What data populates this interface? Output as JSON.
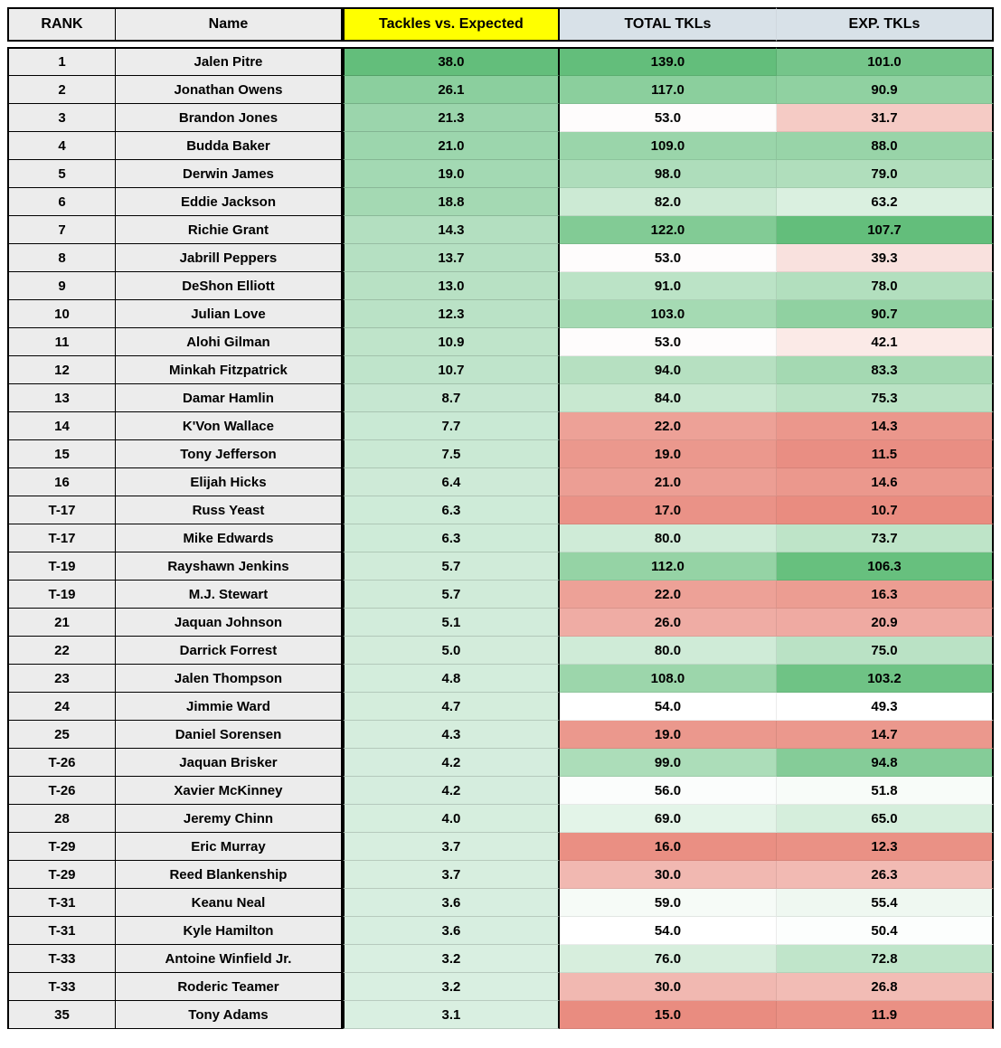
{
  "columns": {
    "rank": "RANK",
    "name": "Name",
    "tve": "Tackles vs. Expected",
    "total": "TOTAL TKLs",
    "exp": "EXP. TKLs"
  },
  "header_bg": {
    "default": "#ececec",
    "highlight": "#ffff00",
    "metric": "#d8e1e8"
  },
  "heatmap": {
    "green_strong": "#63be7b",
    "green_mid": "#a8d9b5",
    "green_light": "#d9efe1",
    "neutral": "#ffffff",
    "red_light": "#fbe4e1",
    "red_mid": "#f4b6ae",
    "red_strong": "#e98c80",
    "tve": {
      "min": 3.1,
      "max": 38.0
    },
    "total": {
      "min": 15.0,
      "max": 139.0,
      "neutral": 54.0
    },
    "exp": {
      "min": 10.7,
      "max": 107.7,
      "neutral": 49.3
    }
  },
  "font": {
    "family": "Arial",
    "size_pt": 12,
    "weight": "bold"
  },
  "rows": [
    {
      "rank": "1",
      "name": "Jalen Pitre",
      "tve": 38.0,
      "total": 139.0,
      "exp": 101.0
    },
    {
      "rank": "2",
      "name": "Jonathan Owens",
      "tve": 26.1,
      "total": 117.0,
      "exp": 90.9
    },
    {
      "rank": "3",
      "name": "Brandon Jones",
      "tve": 21.3,
      "total": 53.0,
      "exp": 31.7
    },
    {
      "rank": "4",
      "name": "Budda Baker",
      "tve": 21.0,
      "total": 109.0,
      "exp": 88.0
    },
    {
      "rank": "5",
      "name": "Derwin James",
      "tve": 19.0,
      "total": 98.0,
      "exp": 79.0
    },
    {
      "rank": "6",
      "name": "Eddie Jackson",
      "tve": 18.8,
      "total": 82.0,
      "exp": 63.2
    },
    {
      "rank": "7",
      "name": "Richie Grant",
      "tve": 14.3,
      "total": 122.0,
      "exp": 107.7
    },
    {
      "rank": "8",
      "name": "Jabrill Peppers",
      "tve": 13.7,
      "total": 53.0,
      "exp": 39.3
    },
    {
      "rank": "9",
      "name": "DeShon Elliott",
      "tve": 13.0,
      "total": 91.0,
      "exp": 78.0
    },
    {
      "rank": "10",
      "name": "Julian Love",
      "tve": 12.3,
      "total": 103.0,
      "exp": 90.7
    },
    {
      "rank": "11",
      "name": "Alohi Gilman",
      "tve": 10.9,
      "total": 53.0,
      "exp": 42.1
    },
    {
      "rank": "12",
      "name": "Minkah Fitzpatrick",
      "tve": 10.7,
      "total": 94.0,
      "exp": 83.3
    },
    {
      "rank": "13",
      "name": "Damar Hamlin",
      "tve": 8.7,
      "total": 84.0,
      "exp": 75.3
    },
    {
      "rank": "14",
      "name": "K'Von Wallace",
      "tve": 7.7,
      "total": 22.0,
      "exp": 14.3
    },
    {
      "rank": "15",
      "name": "Tony Jefferson",
      "tve": 7.5,
      "total": 19.0,
      "exp": 11.5
    },
    {
      "rank": "16",
      "name": "Elijah Hicks",
      "tve": 6.4,
      "total": 21.0,
      "exp": 14.6
    },
    {
      "rank": "T-17",
      "name": "Russ Yeast",
      "tve": 6.3,
      "total": 17.0,
      "exp": 10.7
    },
    {
      "rank": "T-17",
      "name": "Mike Edwards",
      "tve": 6.3,
      "total": 80.0,
      "exp": 73.7
    },
    {
      "rank": "T-19",
      "name": "Rayshawn Jenkins",
      "tve": 5.7,
      "total": 112.0,
      "exp": 106.3
    },
    {
      "rank": "T-19",
      "name": "M.J. Stewart",
      "tve": 5.7,
      "total": 22.0,
      "exp": 16.3
    },
    {
      "rank": "21",
      "name": "Jaquan Johnson",
      "tve": 5.1,
      "total": 26.0,
      "exp": 20.9
    },
    {
      "rank": "22",
      "name": "Darrick Forrest",
      "tve": 5.0,
      "total": 80.0,
      "exp": 75.0
    },
    {
      "rank": "23",
      "name": "Jalen Thompson",
      "tve": 4.8,
      "total": 108.0,
      "exp": 103.2
    },
    {
      "rank": "24",
      "name": "Jimmie Ward",
      "tve": 4.7,
      "total": 54.0,
      "exp": 49.3
    },
    {
      "rank": "25",
      "name": "Daniel Sorensen",
      "tve": 4.3,
      "total": 19.0,
      "exp": 14.7
    },
    {
      "rank": "T-26",
      "name": "Jaquan Brisker",
      "tve": 4.2,
      "total": 99.0,
      "exp": 94.8
    },
    {
      "rank": "T-26",
      "name": "Xavier McKinney",
      "tve": 4.2,
      "total": 56.0,
      "exp": 51.8
    },
    {
      "rank": "28",
      "name": "Jeremy Chinn",
      "tve": 4.0,
      "total": 69.0,
      "exp": 65.0
    },
    {
      "rank": "T-29",
      "name": "Eric Murray",
      "tve": 3.7,
      "total": 16.0,
      "exp": 12.3
    },
    {
      "rank": "T-29",
      "name": "Reed Blankenship",
      "tve": 3.7,
      "total": 30.0,
      "exp": 26.3
    },
    {
      "rank": "T-31",
      "name": "Keanu Neal",
      "tve": 3.6,
      "total": 59.0,
      "exp": 55.4
    },
    {
      "rank": "T-31",
      "name": "Kyle Hamilton",
      "tve": 3.6,
      "total": 54.0,
      "exp": 50.4
    },
    {
      "rank": "T-33",
      "name": "Antoine Winfield Jr.",
      "tve": 3.2,
      "total": 76.0,
      "exp": 72.8
    },
    {
      "rank": "T-33",
      "name": "Roderic Teamer",
      "tve": 3.2,
      "total": 30.0,
      "exp": 26.8
    },
    {
      "rank": "35",
      "name": "Tony Adams",
      "tve": 3.1,
      "total": 15.0,
      "exp": 11.9
    }
  ]
}
